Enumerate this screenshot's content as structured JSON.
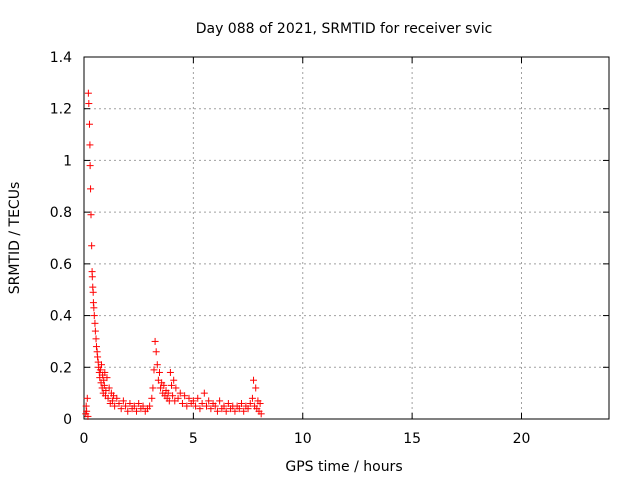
{
  "chart_data": {
    "type": "scatter",
    "title": "Day 088 of 2021, SRMTID for receiver svic",
    "xlabel": "GPS time / hours",
    "ylabel": "SRMTID / TECUs",
    "xlim": [
      0,
      24
    ],
    "ylim": [
      0,
      1.4
    ],
    "grid": true,
    "x_ticks": [
      0,
      5,
      10,
      15,
      20
    ],
    "y_ticks": [
      0,
      0.2,
      0.4,
      0.6,
      0.8,
      1,
      1.2,
      1.4
    ],
    "x_tick_labels": [
      "0",
      "5",
      "10",
      "15",
      "20"
    ],
    "y_tick_labels": [
      "0",
      "0.2",
      "0.4",
      "0.6",
      "0.8",
      "1",
      "1.2",
      "1.4"
    ],
    "marker": "+",
    "marker_color": "#ff0000",
    "series": [
      {
        "name": "svic",
        "points": [
          [
            0.08,
            0.02
          ],
          [
            0.1,
            0.05
          ],
          [
            0.12,
            0.03
          ],
          [
            0.15,
            0.08
          ],
          [
            0.18,
            0.01
          ],
          [
            0.2,
            1.26
          ],
          [
            0.22,
            1.22
          ],
          [
            0.25,
            1.14
          ],
          [
            0.27,
            1.06
          ],
          [
            0.28,
            0.98
          ],
          [
            0.3,
            0.89
          ],
          [
            0.32,
            0.79
          ],
          [
            0.35,
            0.67
          ],
          [
            0.37,
            0.57
          ],
          [
            0.38,
            0.55
          ],
          [
            0.4,
            0.51
          ],
          [
            0.42,
            0.49
          ],
          [
            0.43,
            0.45
          ],
          [
            0.45,
            0.43
          ],
          [
            0.47,
            0.4
          ],
          [
            0.5,
            0.37
          ],
          [
            0.52,
            0.34
          ],
          [
            0.55,
            0.31
          ],
          [
            0.57,
            0.28
          ],
          [
            0.6,
            0.26
          ],
          [
            0.62,
            0.24
          ],
          [
            0.65,
            0.22
          ],
          [
            0.67,
            0.2
          ],
          [
            0.7,
            0.18
          ],
          [
            0.72,
            0.16
          ],
          [
            0.75,
            0.19
          ],
          [
            0.78,
            0.14
          ],
          [
            0.8,
            0.21
          ],
          [
            0.83,
            0.12
          ],
          [
            0.85,
            0.17
          ],
          [
            0.88,
            0.1
          ],
          [
            0.9,
            0.15
          ],
          [
            0.93,
            0.13
          ],
          [
            0.95,
            0.18
          ],
          [
            0.98,
            0.09
          ],
          [
            1.0,
            0.11
          ],
          [
            1.05,
            0.16
          ],
          [
            1.1,
            0.08
          ],
          [
            1.15,
            0.12
          ],
          [
            1.2,
            0.06
          ],
          [
            1.25,
            0.1
          ],
          [
            1.3,
            0.07
          ],
          [
            1.35,
            0.09
          ],
          [
            1.4,
            0.05
          ],
          [
            1.5,
            0.08
          ],
          [
            1.6,
            0.06
          ],
          [
            1.7,
            0.04
          ],
          [
            1.8,
            0.07
          ],
          [
            1.9,
            0.05
          ],
          [
            2.0,
            0.03
          ],
          [
            2.1,
            0.06
          ],
          [
            2.2,
            0.04
          ],
          [
            2.3,
            0.05
          ],
          [
            2.4,
            0.03
          ],
          [
            2.5,
            0.06
          ],
          [
            2.6,
            0.04
          ],
          [
            2.7,
            0.05
          ],
          [
            2.8,
            0.03
          ],
          [
            2.9,
            0.04
          ],
          [
            3.0,
            0.05
          ],
          [
            3.1,
            0.08
          ],
          [
            3.15,
            0.12
          ],
          [
            3.2,
            0.19
          ],
          [
            3.25,
            0.3
          ],
          [
            3.3,
            0.26
          ],
          [
            3.35,
            0.21
          ],
          [
            3.4,
            0.15
          ],
          [
            3.45,
            0.18
          ],
          [
            3.5,
            0.12
          ],
          [
            3.55,
            0.14
          ],
          [
            3.6,
            0.1
          ],
          [
            3.65,
            0.13
          ],
          [
            3.7,
            0.09
          ],
          [
            3.75,
            0.11
          ],
          [
            3.8,
            0.08
          ],
          [
            3.85,
            0.1
          ],
          [
            3.9,
            0.07
          ],
          [
            3.95,
            0.18
          ],
          [
            4.0,
            0.13
          ],
          [
            4.05,
            0.09
          ],
          [
            4.1,
            0.15
          ],
          [
            4.15,
            0.07
          ],
          [
            4.2,
            0.12
          ],
          [
            4.3,
            0.08
          ],
          [
            4.4,
            0.1
          ],
          [
            4.5,
            0.06
          ],
          [
            4.6,
            0.09
          ],
          [
            4.7,
            0.05
          ],
          [
            4.8,
            0.08
          ],
          [
            4.9,
            0.06
          ],
          [
            5.0,
            0.07
          ],
          [
            5.1,
            0.05
          ],
          [
            5.2,
            0.08
          ],
          [
            5.3,
            0.04
          ],
          [
            5.4,
            0.06
          ],
          [
            5.5,
            0.1
          ],
          [
            5.6,
            0.05
          ],
          [
            5.7,
            0.07
          ],
          [
            5.8,
            0.04
          ],
          [
            5.9,
            0.06
          ],
          [
            6.0,
            0.05
          ],
          [
            6.1,
            0.03
          ],
          [
            6.2,
            0.07
          ],
          [
            6.3,
            0.04
          ],
          [
            6.4,
            0.05
          ],
          [
            6.5,
            0.03
          ],
          [
            6.6,
            0.06
          ],
          [
            6.7,
            0.04
          ],
          [
            6.8,
            0.05
          ],
          [
            6.9,
            0.03
          ],
          [
            7.0,
            0.05
          ],
          [
            7.1,
            0.04
          ],
          [
            7.2,
            0.06
          ],
          [
            7.3,
            0.03
          ],
          [
            7.4,
            0.05
          ],
          [
            7.5,
            0.04
          ],
          [
            7.6,
            0.06
          ],
          [
            7.7,
            0.08
          ],
          [
            7.75,
            0.15
          ],
          [
            7.8,
            0.05
          ],
          [
            7.85,
            0.12
          ],
          [
            7.9,
            0.04
          ],
          [
            7.95,
            0.07
          ],
          [
            8.0,
            0.03
          ],
          [
            8.05,
            0.06
          ],
          [
            8.1,
            0.02
          ]
        ]
      }
    ]
  }
}
